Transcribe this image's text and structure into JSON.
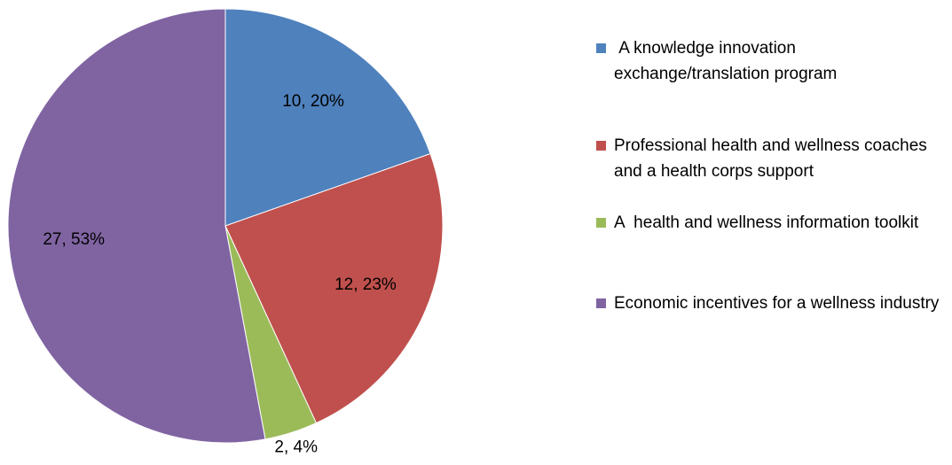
{
  "chart_data": {
    "type": "pie",
    "categories": [
      " A knowledge innovation exchange/translation program",
      "Professional health and wellness coaches and a health corps support",
      "A  health and wellness information toolkit",
      "Economic incentives for a wellness industry"
    ],
    "values": [
      10,
      12,
      2,
      27
    ],
    "value_labels": [
      "10, 20%",
      "12, 23%",
      "2, 4%",
      "27, 53%"
    ],
    "colors": [
      "#4f81bd",
      "#c0504d",
      "#9bbb59",
      "#8064a2"
    ],
    "legend": "right"
  }
}
